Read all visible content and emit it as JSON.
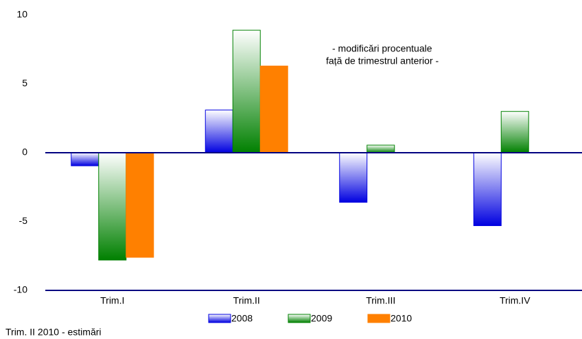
{
  "chart_data": {
    "type": "bar",
    "annotation": [
      "- modificări procentuale",
      "față de trimestrul anterior -"
    ],
    "footnote": "Trim. II 2010 - estimări",
    "categories": [
      "Trim.I",
      "Trim.II",
      "Trim.III",
      "Trim.IV"
    ],
    "series": [
      {
        "name": "2008",
        "color": "#0000e0",
        "gradient": true,
        "values": [
          -0.95,
          3.1,
          -3.6,
          -5.3
        ]
      },
      {
        "name": "2009",
        "color": "#008000",
        "gradient": true,
        "values": [
          -7.8,
          8.9,
          0.55,
          3.0
        ]
      },
      {
        "name": "2010",
        "color": "#ff8000",
        "gradient": false,
        "values": [
          -7.6,
          6.3,
          null,
          null
        ]
      }
    ],
    "ylim": [
      -10,
      10
    ],
    "yticks": [
      -10,
      -5,
      0,
      5,
      10
    ],
    "axis_color": "#000080"
  }
}
